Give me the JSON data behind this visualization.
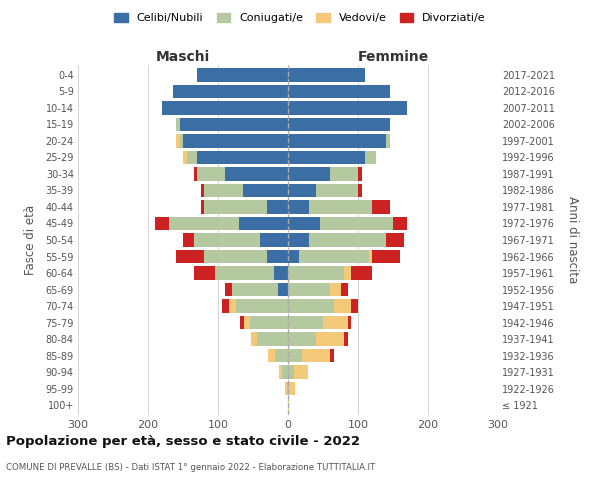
{
  "age_groups": [
    "100+",
    "95-99",
    "90-94",
    "85-89",
    "80-84",
    "75-79",
    "70-74",
    "65-69",
    "60-64",
    "55-59",
    "50-54",
    "45-49",
    "40-44",
    "35-39",
    "30-34",
    "25-29",
    "20-24",
    "15-19",
    "10-14",
    "5-9",
    "0-4"
  ],
  "anni_nascita": [
    "≤ 1921",
    "1922-1926",
    "1927-1931",
    "1932-1936",
    "1937-1941",
    "1942-1946",
    "1947-1951",
    "1952-1956",
    "1957-1961",
    "1962-1966",
    "1967-1971",
    "1972-1976",
    "1977-1981",
    "1982-1986",
    "1987-1991",
    "1992-1996",
    "1997-2001",
    "2002-2006",
    "2007-2011",
    "2012-2016",
    "2017-2021"
  ],
  "maschi": {
    "celibi": [
      0,
      0,
      0,
      0,
      0,
      0,
      0,
      15,
      20,
      30,
      40,
      70,
      30,
      65,
      90,
      130,
      150,
      155,
      180,
      165,
      130
    ],
    "coniugati": [
      0,
      2,
      8,
      18,
      45,
      55,
      75,
      65,
      85,
      90,
      95,
      100,
      90,
      55,
      40,
      15,
      5,
      5,
      0,
      0,
      0
    ],
    "vedovi": [
      0,
      2,
      5,
      10,
      8,
      8,
      10,
      0,
      0,
      0,
      0,
      0,
      0,
      0,
      0,
      5,
      5,
      0,
      0,
      0,
      0
    ],
    "divorziati": [
      0,
      0,
      0,
      0,
      0,
      5,
      10,
      10,
      30,
      40,
      15,
      20,
      5,
      5,
      5,
      0,
      0,
      0,
      0,
      0,
      0
    ]
  },
  "femmine": {
    "nubili": [
      0,
      0,
      0,
      0,
      0,
      0,
      0,
      0,
      0,
      15,
      30,
      45,
      30,
      40,
      60,
      110,
      140,
      145,
      170,
      145,
      110
    ],
    "coniugate": [
      0,
      2,
      8,
      20,
      40,
      50,
      65,
      60,
      80,
      100,
      110,
      105,
      90,
      60,
      40,
      15,
      5,
      0,
      0,
      0,
      0
    ],
    "vedove": [
      1,
      8,
      20,
      40,
      40,
      35,
      25,
      15,
      10,
      5,
      0,
      0,
      0,
      0,
      0,
      0,
      0,
      0,
      0,
      0,
      0
    ],
    "divorziate": [
      0,
      0,
      0,
      5,
      5,
      5,
      10,
      10,
      30,
      40,
      25,
      20,
      25,
      5,
      5,
      0,
      0,
      0,
      0,
      0,
      0
    ]
  },
  "colors": {
    "celibi": "#3b6ea5",
    "coniugati": "#b5c9a1",
    "vedovi": "#f5c97a",
    "divorziati": "#cc2222"
  },
  "xlim": 300,
  "title": "Popolazione per età, sesso e stato civile - 2022",
  "subtitle": "COMUNE DI PREVALLE (BS) - Dati ISTAT 1° gennaio 2022 - Elaborazione TUTTITALIA.IT",
  "ylabel_left": "Fasce di età",
  "ylabel_right": "Anni di nascita",
  "xlabel_left": "Maschi",
  "xlabel_right": "Femmine",
  "legend_labels": [
    "Celibi/Nubili",
    "Coniugati/e",
    "Vedovi/e",
    "Divorziati/e"
  ],
  "background_color": "#ffffff"
}
